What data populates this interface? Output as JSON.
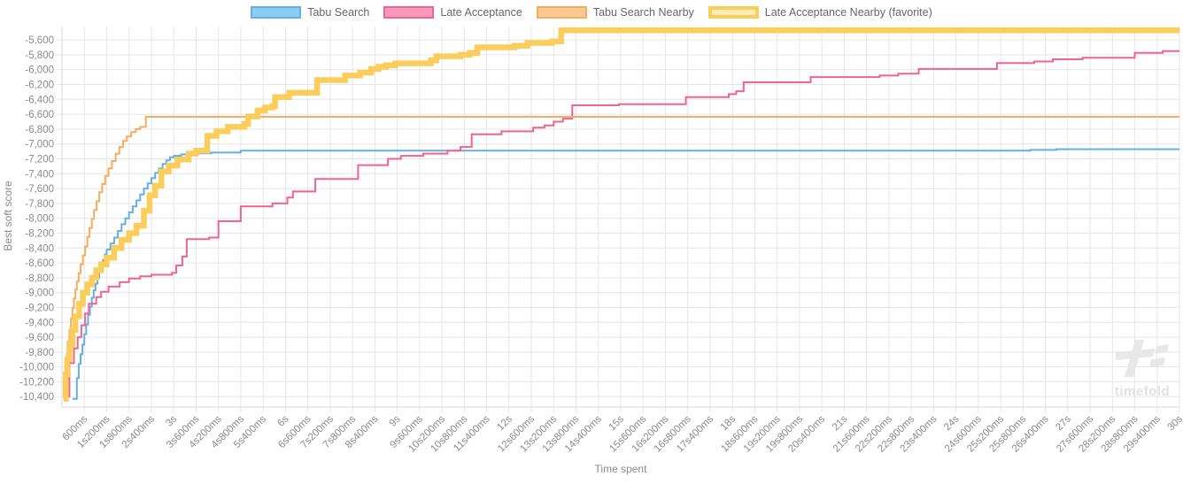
{
  "legend": {
    "items": [
      {
        "label": "Tabu Search",
        "fill": "#8bcdf3",
        "border": "#67afe0",
        "border_width": 2
      },
      {
        "label": "Late Acceptance",
        "fill": "#f899bb",
        "border": "#ef6590",
        "border_width": 2
      },
      {
        "label": "Tabu Search Nearby",
        "fill": "#fbca92",
        "border": "#f7ad60",
        "border_width": 2
      },
      {
        "label": "Late Acceptance Nearby (favorite)",
        "fill": "#fdedb9",
        "border": "#fbce5c",
        "border_width": 4
      }
    ]
  },
  "watermark": {
    "text": "timefold"
  },
  "chart_data": {
    "type": "line",
    "step": true,
    "title": "",
    "xlabel": "Time spent",
    "ylabel": "Best soft score",
    "xlim": [
      0,
      30
    ],
    "ylim": [
      -10540,
      -5420
    ],
    "grid": true,
    "legend_position": "top",
    "x_tick_interval_s": 0.6,
    "x_tick_labels": [
      "600ms",
      "1s200ms",
      "1s800ms",
      "2s400ms",
      "3s",
      "3s600ms",
      "4s200ms",
      "4s800ms",
      "5s400ms",
      "6s",
      "6s600ms",
      "7s200ms",
      "7s800ms",
      "8s400ms",
      "9s",
      "9s600ms",
      "10s200ms",
      "10s800ms",
      "11s400ms",
      "12s",
      "12s600ms",
      "13s200ms",
      "13s800ms",
      "14s400ms",
      "15s",
      "15s600ms",
      "16s200ms",
      "16s800ms",
      "17s400ms",
      "18s",
      "18s600ms",
      "19s200ms",
      "19s800ms",
      "20s400ms",
      "21s",
      "21s600ms",
      "22s200ms",
      "22s800ms",
      "23s400ms",
      "24s",
      "24s600ms",
      "25s200ms",
      "25s800ms",
      "26s400ms",
      "27s",
      "27s600ms",
      "28s200ms",
      "28s800ms",
      "29s400ms",
      "30s"
    ],
    "y_ticks": [
      -5600,
      -5800,
      -6000,
      -6200,
      -6400,
      -6600,
      -6800,
      -7000,
      -7200,
      -7400,
      -7600,
      -7800,
      -8000,
      -8200,
      -8400,
      -8600,
      -8800,
      -9000,
      -9200,
      -9400,
      -9600,
      -9800,
      -10000,
      -10200,
      -10400
    ],
    "grid_color": "#e6e6e6",
    "axis_border_color": "#d9d9d9",
    "tick_label_color": "#8a8a8a",
    "series": [
      {
        "name": "Tabu Search",
        "color": "#67afe0",
        "line_width": 2,
        "points": [
          [
            0.28,
            -10430
          ],
          [
            0.4,
            -10150
          ],
          [
            0.45,
            -9960
          ],
          [
            0.5,
            -9830
          ],
          [
            0.55,
            -9700
          ],
          [
            0.6,
            -9560
          ],
          [
            0.65,
            -9430
          ],
          [
            0.7,
            -9300
          ],
          [
            0.75,
            -9190
          ],
          [
            0.8,
            -9070
          ],
          [
            0.85,
            -8970
          ],
          [
            0.9,
            -8880
          ],
          [
            0.95,
            -8800
          ],
          [
            1.0,
            -8720
          ],
          [
            1.05,
            -8640
          ],
          [
            1.1,
            -8560
          ],
          [
            1.15,
            -8490
          ],
          [
            1.2,
            -8420
          ],
          [
            1.3,
            -8340
          ],
          [
            1.4,
            -8260
          ],
          [
            1.5,
            -8170
          ],
          [
            1.6,
            -8080
          ],
          [
            1.7,
            -8000
          ],
          [
            1.8,
            -7920
          ],
          [
            1.9,
            -7840
          ],
          [
            2.0,
            -7760
          ],
          [
            2.1,
            -7680
          ],
          [
            2.2,
            -7600
          ],
          [
            2.3,
            -7530
          ],
          [
            2.4,
            -7460
          ],
          [
            2.5,
            -7390
          ],
          [
            2.6,
            -7330
          ],
          [
            2.7,
            -7270
          ],
          [
            2.8,
            -7220
          ],
          [
            2.9,
            -7180
          ],
          [
            3.0,
            -7160
          ],
          [
            3.2,
            -7140
          ],
          [
            3.5,
            -7125
          ],
          [
            4.0,
            -7115
          ],
          [
            4.8,
            -7090
          ],
          [
            26.0,
            -7080
          ],
          [
            26.7,
            -7070
          ]
        ]
      },
      {
        "name": "Late Acceptance",
        "color": "#ef6590",
        "line_width": 2,
        "points": [
          [
            0.1,
            -10400
          ],
          [
            0.2,
            -9950
          ],
          [
            0.32,
            -9750
          ],
          [
            0.42,
            -9600
          ],
          [
            0.52,
            -9440
          ],
          [
            0.62,
            -9280
          ],
          [
            0.72,
            -9150
          ],
          [
            0.92,
            -9060
          ],
          [
            1.05,
            -8990
          ],
          [
            1.25,
            -8920
          ],
          [
            1.55,
            -8860
          ],
          [
            1.8,
            -8810
          ],
          [
            2.1,
            -8780
          ],
          [
            2.4,
            -8760
          ],
          [
            2.95,
            -8735
          ],
          [
            3.07,
            -8635
          ],
          [
            3.23,
            -8515
          ],
          [
            3.35,
            -8280
          ],
          [
            3.95,
            -8260
          ],
          [
            4.2,
            -8040
          ],
          [
            4.8,
            -7840
          ],
          [
            5.65,
            -7800
          ],
          [
            6.05,
            -7720
          ],
          [
            6.2,
            -7640
          ],
          [
            6.8,
            -7470
          ],
          [
            7.95,
            -7285
          ],
          [
            8.75,
            -7200
          ],
          [
            9.1,
            -7160
          ],
          [
            9.7,
            -7130
          ],
          [
            10.35,
            -7090
          ],
          [
            10.7,
            -7040
          ],
          [
            11.0,
            -6870
          ],
          [
            11.8,
            -6830
          ],
          [
            12.65,
            -6780
          ],
          [
            12.95,
            -6750
          ],
          [
            13.2,
            -6700
          ],
          [
            13.45,
            -6660
          ],
          [
            13.7,
            -6480
          ],
          [
            14.95,
            -6465
          ],
          [
            16.75,
            -6370
          ],
          [
            17.9,
            -6330
          ],
          [
            18.1,
            -6290
          ],
          [
            18.3,
            -6170
          ],
          [
            20.1,
            -6100
          ],
          [
            21.95,
            -6080
          ],
          [
            22.45,
            -6055
          ],
          [
            23.0,
            -5990
          ],
          [
            25.1,
            -5910
          ],
          [
            26.1,
            -5890
          ],
          [
            26.6,
            -5860
          ],
          [
            27.4,
            -5840
          ],
          [
            28.8,
            -5775
          ],
          [
            29.55,
            -5750
          ]
        ]
      },
      {
        "name": "Tabu Search Nearby",
        "color": "#f7ad60",
        "line_width": 2,
        "points": [
          [
            0.05,
            -10430
          ],
          [
            0.08,
            -10150
          ],
          [
            0.1,
            -9980
          ],
          [
            0.13,
            -9820
          ],
          [
            0.16,
            -9660
          ],
          [
            0.2,
            -9500
          ],
          [
            0.24,
            -9350
          ],
          [
            0.28,
            -9210
          ],
          [
            0.32,
            -9080
          ],
          [
            0.36,
            -8960
          ],
          [
            0.4,
            -8850
          ],
          [
            0.45,
            -8740
          ],
          [
            0.5,
            -8620
          ],
          [
            0.56,
            -8500
          ],
          [
            0.62,
            -8380
          ],
          [
            0.68,
            -8250
          ],
          [
            0.74,
            -8130
          ],
          [
            0.8,
            -8010
          ],
          [
            0.86,
            -7890
          ],
          [
            0.93,
            -7770
          ],
          [
            1.0,
            -7650
          ],
          [
            1.08,
            -7540
          ],
          [
            1.16,
            -7430
          ],
          [
            1.25,
            -7330
          ],
          [
            1.34,
            -7230
          ],
          [
            1.44,
            -7130
          ],
          [
            1.54,
            -7040
          ],
          [
            1.64,
            -6960
          ],
          [
            1.74,
            -6900
          ],
          [
            1.86,
            -6840
          ],
          [
            1.98,
            -6800
          ],
          [
            2.1,
            -6770
          ],
          [
            2.25,
            -6635
          ]
        ]
      },
      {
        "name": "Late Acceptance Nearby (favorite)",
        "color": "#fbce5c",
        "line_width": 6.5,
        "points": [
          [
            0.05,
            -10430
          ],
          [
            0.1,
            -10100
          ],
          [
            0.14,
            -9900
          ],
          [
            0.2,
            -9700
          ],
          [
            0.28,
            -9500
          ],
          [
            0.36,
            -9320
          ],
          [
            0.46,
            -9150
          ],
          [
            0.56,
            -9000
          ],
          [
            0.68,
            -8890
          ],
          [
            0.8,
            -8800
          ],
          [
            0.92,
            -8700
          ],
          [
            1.05,
            -8620
          ],
          [
            1.2,
            -8530
          ],
          [
            1.4,
            -8400
          ],
          [
            1.6,
            -8290
          ],
          [
            1.8,
            -8200
          ],
          [
            2.0,
            -8100
          ],
          [
            2.2,
            -7900
          ],
          [
            2.35,
            -7690
          ],
          [
            2.5,
            -7560
          ],
          [
            2.67,
            -7370
          ],
          [
            2.87,
            -7290
          ],
          [
            3.1,
            -7210
          ],
          [
            3.4,
            -7130
          ],
          [
            3.6,
            -7090
          ],
          [
            3.9,
            -6890
          ],
          [
            4.15,
            -6830
          ],
          [
            4.45,
            -6770
          ],
          [
            4.9,
            -6730
          ],
          [
            5.0,
            -6630
          ],
          [
            5.25,
            -6550
          ],
          [
            5.45,
            -6510
          ],
          [
            5.65,
            -6490
          ],
          [
            5.72,
            -6370
          ],
          [
            6.1,
            -6310
          ],
          [
            6.85,
            -6140
          ],
          [
            7.6,
            -6080
          ],
          [
            8.0,
            -6040
          ],
          [
            8.3,
            -5990
          ],
          [
            8.5,
            -5960
          ],
          [
            8.7,
            -5940
          ],
          [
            8.95,
            -5915
          ],
          [
            9.9,
            -5875
          ],
          [
            10.05,
            -5820
          ],
          [
            10.7,
            -5800
          ],
          [
            10.95,
            -5775
          ],
          [
            11.15,
            -5700
          ],
          [
            12.15,
            -5680
          ],
          [
            12.5,
            -5640
          ],
          [
            13.15,
            -5620
          ],
          [
            13.4,
            -5470
          ]
        ]
      }
    ]
  }
}
